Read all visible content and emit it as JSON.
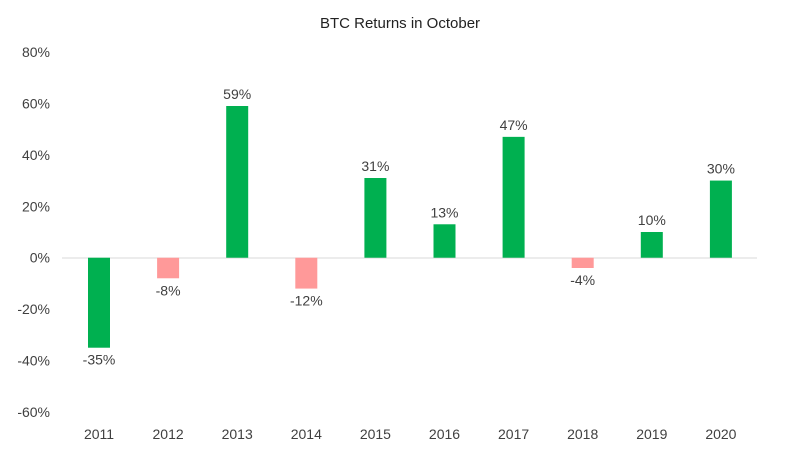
{
  "chart_data": {
    "type": "bar",
    "title": "BTC Returns in October",
    "xlabel": "",
    "ylabel": "",
    "categories": [
      "2011",
      "2012",
      "2013",
      "2014",
      "2015",
      "2016",
      "2017",
      "2018",
      "2019",
      "2020"
    ],
    "values": [
      -35,
      -8,
      59,
      -12,
      31,
      13,
      47,
      -4,
      10,
      30
    ],
    "data_labels": [
      "-35%",
      "-8%",
      "59%",
      "-12%",
      "31%",
      "13%",
      "47%",
      "-4%",
      "10%",
      "30%"
    ],
    "bar_colors": [
      "#00b050",
      "#ff9999",
      "#00b050",
      "#ff9999",
      "#00b050",
      "#00b050",
      "#00b050",
      "#ff9999",
      "#00b050",
      "#00b050"
    ],
    "ylim": [
      -60,
      80
    ],
    "yticks": [
      80,
      60,
      40,
      20,
      0,
      -20,
      -40,
      -60
    ],
    "ytick_labels": [
      "80%",
      "60%",
      "40%",
      "20%",
      "0%",
      "-20%",
      "-40%",
      "-60%"
    ],
    "grid": false,
    "legend": "none"
  }
}
